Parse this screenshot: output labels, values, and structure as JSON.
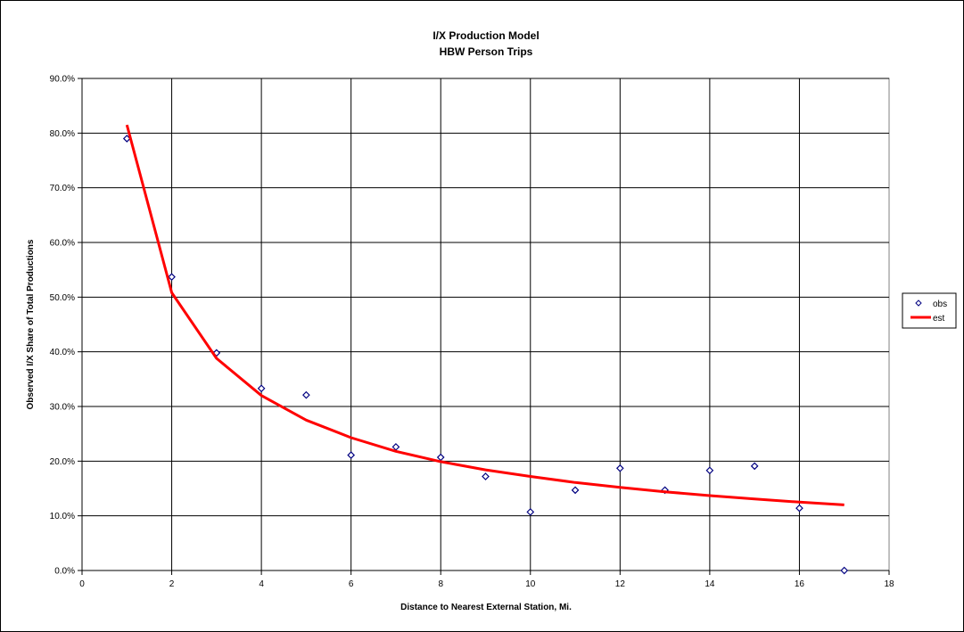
{
  "chart_data": {
    "type": "scatter",
    "title": "I/X Production Model",
    "subtitle": "HBW Person Trips",
    "xlabel": "Distance to Nearest External Station, Mi.",
    "ylabel": "Observed I/X Share of Total Productions",
    "xlim": [
      0,
      18
    ],
    "ylim": [
      0,
      0.9
    ],
    "x_ticks": [
      "0",
      "2",
      "4",
      "6",
      "8",
      "10",
      "12",
      "14",
      "16",
      "18"
    ],
    "y_ticks": [
      "0.0%",
      "10.0%",
      "20.0%",
      "30.0%",
      "40.0%",
      "50.0%",
      "60.0%",
      "70.0%",
      "80.0%",
      "90.0%"
    ],
    "grid": true,
    "legend_position": "right",
    "series": [
      {
        "name": "obs",
        "kind": "markers",
        "marker": "diamond",
        "color": "#000080",
        "x": [
          1,
          2,
          3,
          4,
          5,
          6,
          7,
          8,
          9,
          10,
          11,
          12,
          13,
          14,
          15,
          16,
          17
        ],
        "y": [
          0.79,
          0.537,
          0.398,
          0.333,
          0.321,
          0.211,
          0.226,
          0.207,
          0.172,
          0.107,
          0.147,
          0.187,
          0.147,
          0.183,
          0.191,
          0.114,
          0.0
        ]
      },
      {
        "name": "est",
        "kind": "line",
        "color": "#ff0000",
        "x": [
          1,
          2,
          3,
          4,
          5,
          6,
          7,
          8,
          9,
          10,
          11,
          12,
          13,
          14,
          15,
          16,
          17
        ],
        "y": [
          0.815,
          0.508,
          0.388,
          0.32,
          0.275,
          0.243,
          0.218,
          0.199,
          0.184,
          0.172,
          0.161,
          0.152,
          0.144,
          0.137,
          0.131,
          0.125,
          0.12
        ]
      }
    ]
  }
}
